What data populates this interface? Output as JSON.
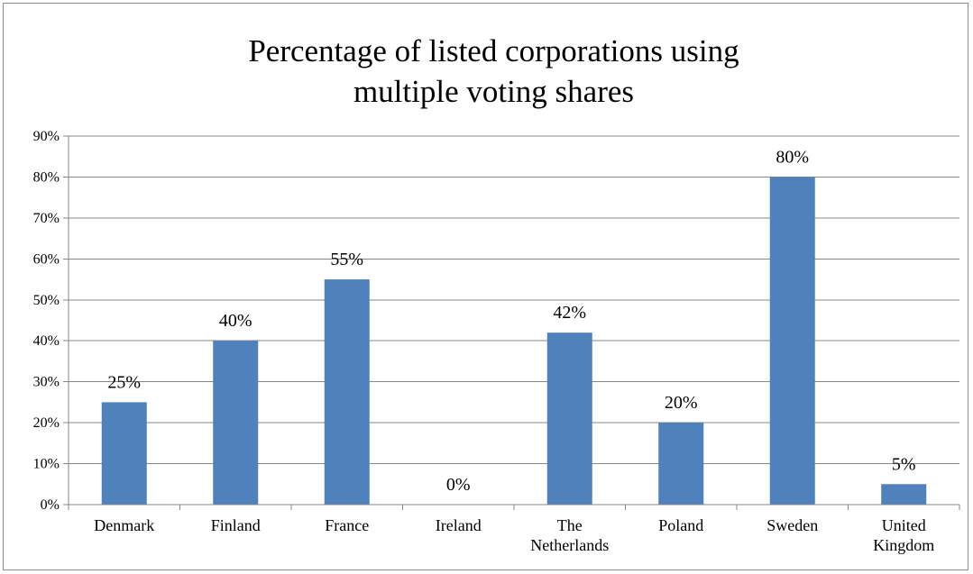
{
  "chart_data": {
    "type": "bar",
    "title_lines": [
      "Percentage of listed corporations using",
      "multiple voting shares"
    ],
    "categories": [
      [
        "Denmark"
      ],
      [
        "Finland"
      ],
      [
        "France"
      ],
      [
        "Ireland"
      ],
      [
        "The",
        "Netherlands"
      ],
      [
        "Poland"
      ],
      [
        "Sweden"
      ],
      [
        "United",
        "Kingdom"
      ]
    ],
    "values": [
      25,
      40,
      55,
      0,
      42,
      20,
      80,
      5
    ],
    "data_labels": [
      "25%",
      "40%",
      "55%",
      "0%",
      "42%",
      "20%",
      "80%",
      "5%"
    ],
    "y_ticks": [
      "0%",
      "10%",
      "20%",
      "30%",
      "40%",
      "50%",
      "60%",
      "70%",
      "80%",
      "90%"
    ],
    "ylim": [
      0,
      90
    ],
    "xlabel": "",
    "ylabel": "",
    "grid": true,
    "legend": "none",
    "bar_color": "#4f81bd",
    "grid_color": "#878787"
  }
}
